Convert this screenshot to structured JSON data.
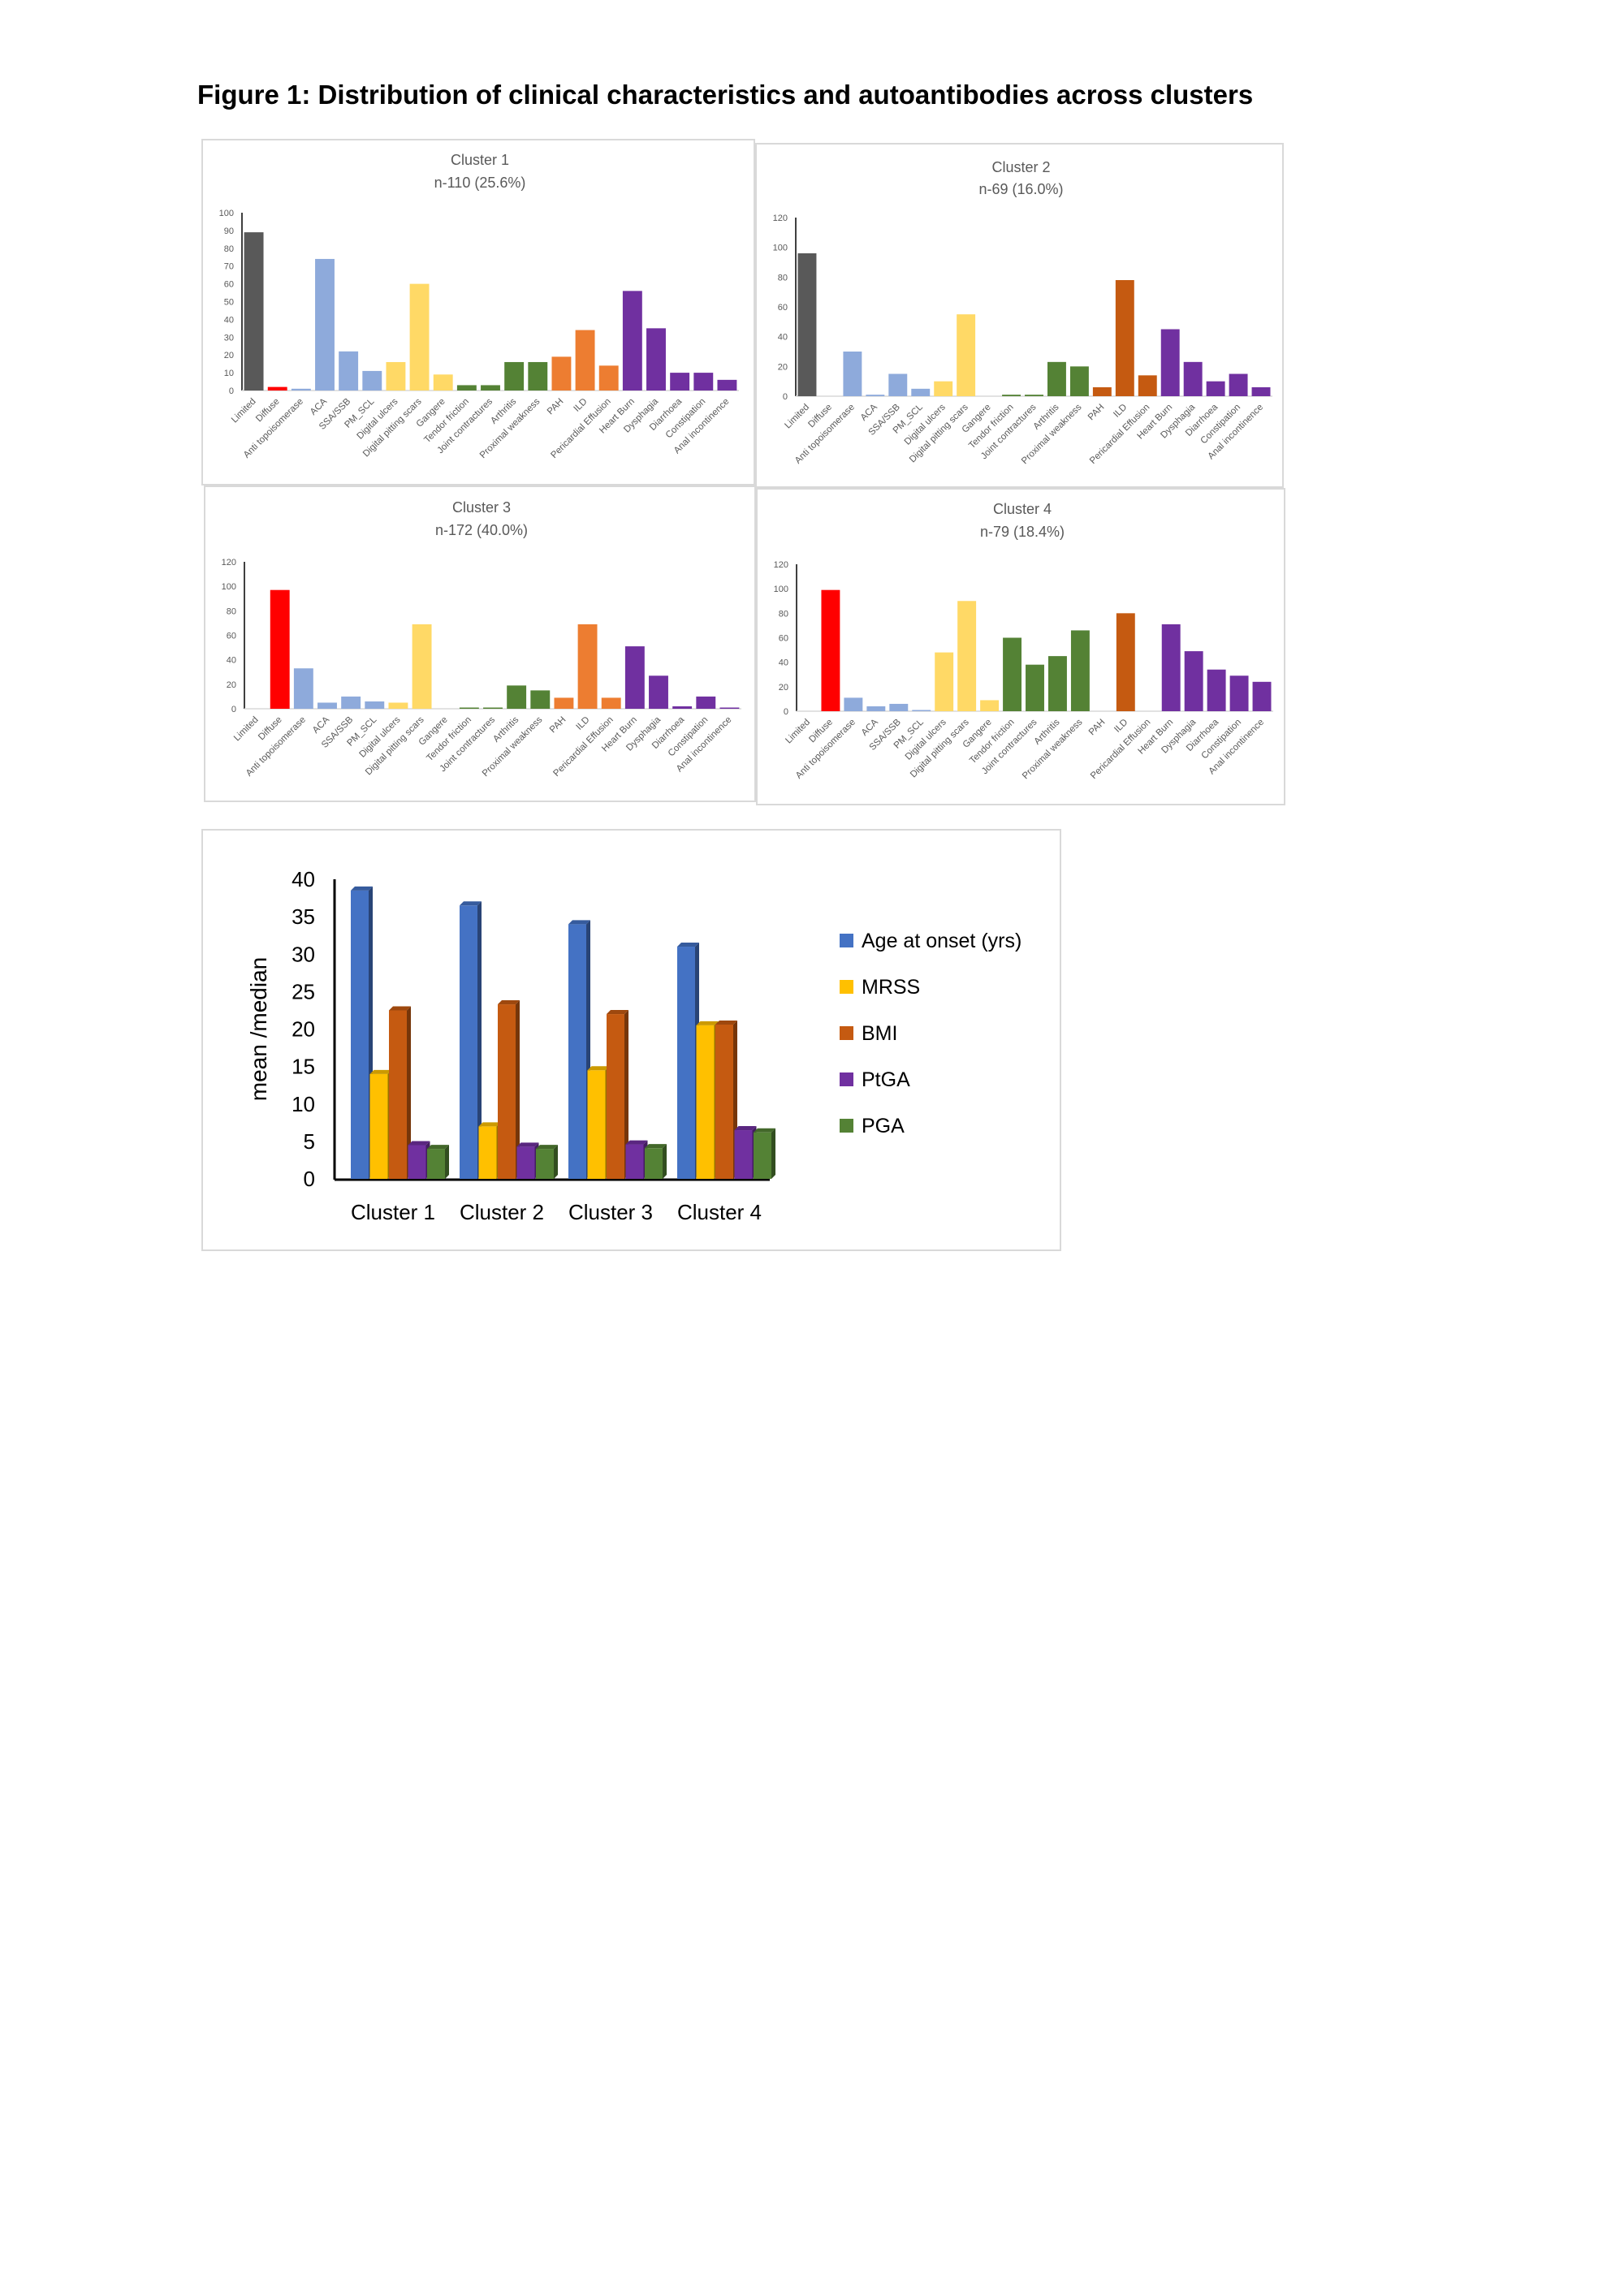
{
  "figure_title": "Figure 1: Distribution of clinical characteristics and autoantibodies across clusters",
  "colors": {
    "dark_gray": "#595959",
    "red": "#ff0000",
    "light_blue": "#8eaadb",
    "yellow": "#ffd966",
    "green": "#548235",
    "orange": "#ed7d31",
    "burnt_orange": "#c55a11",
    "purple": "#7030a0",
    "blue3d": "#4472c4",
    "gold3d": "#ffc000",
    "rust3d": "#c55a11",
    "purple3d": "#7030a0",
    "green3d": "#548235"
  },
  "chart_data": [
    {
      "id": "cluster1",
      "type": "bar",
      "title": "Cluster 1",
      "subtitle": "n-110 (25.6%)",
      "categories": [
        "Limited",
        "Diffuse",
        "Anti topoisomerase",
        "ACA",
        "SSA/SSB",
        "PM_SCL",
        "Digital ulcers",
        "Digital pitting scars",
        "Gangere",
        "Tendor friction",
        "Joint contractures",
        "Arthritis",
        "Proximal weakness",
        "PAH",
        "ILD",
        "Pericardial Effusion",
        "Heart Burn",
        "Dysphagia",
        "Diarrhoea",
        "Constipation",
        "Anal incontinence"
      ],
      "values": [
        89,
        2,
        1,
        74,
        22,
        11,
        16,
        60,
        9,
        3,
        3,
        16,
        16,
        19,
        34,
        14,
        56,
        35,
        10,
        10,
        6
      ],
      "bar_colors": [
        "dark_gray",
        "red",
        "light_blue",
        "light_blue",
        "light_blue",
        "light_blue",
        "yellow",
        "yellow",
        "yellow",
        "green",
        "green",
        "green",
        "green",
        "orange",
        "orange",
        "orange",
        "purple",
        "purple",
        "purple",
        "purple",
        "purple"
      ],
      "ylim": [
        0,
        100
      ],
      "yticks": [
        "0",
        "10",
        "20",
        "30",
        "40",
        "50",
        "60",
        "70",
        "80",
        "90",
        "100"
      ]
    },
    {
      "id": "cluster2",
      "type": "bar",
      "title": "Cluster 2",
      "subtitle": "n-69 (16.0%)",
      "categories": [
        "Limited",
        "Diffuse",
        "Anti topoisomerase",
        "ACA",
        "SSA/SSB",
        "PM_SCL",
        "Digital ulcers",
        "Digital pitting scars",
        "Gangere",
        "Tendor friction",
        "Joint contractures",
        "Arthritis",
        "Proximal weakness",
        "PAH",
        "ILD",
        "Pericardial Effusion",
        "Heart Burn",
        "Dysphagia",
        "Diarrhoea",
        "Constipation",
        "Anal incontinence"
      ],
      "values": [
        96,
        0,
        30,
        1,
        15,
        5,
        10,
        55,
        0,
        1,
        1,
        23,
        20,
        6,
        78,
        14,
        45,
        23,
        10,
        15,
        6
      ],
      "bar_colors": [
        "dark_gray",
        "red",
        "light_blue",
        "light_blue",
        "light_blue",
        "light_blue",
        "yellow",
        "yellow",
        "yellow",
        "green",
        "green",
        "green",
        "green",
        "burnt_orange",
        "burnt_orange",
        "burnt_orange",
        "purple",
        "purple",
        "purple",
        "purple",
        "purple"
      ],
      "ylim": [
        0,
        120
      ],
      "yticks": [
        "0",
        "20",
        "40",
        "60",
        "80",
        "100",
        "120"
      ]
    },
    {
      "id": "cluster3",
      "type": "bar",
      "title": "Cluster 3",
      "subtitle": "n-172 (40.0%)",
      "categories": [
        "Limited",
        "Diffuse",
        "Anti topoisomerase",
        "ACA",
        "SSA/SSB",
        "PM_SCL",
        "Digital ulcers",
        "Digital pitting scars",
        "Gangere",
        "Tendor friction",
        "Joint contractures",
        "Arthritis",
        "Proximal weakness",
        "PAH",
        "ILD",
        "Pericardial Effusion",
        "Heart Burn",
        "Dysphagia",
        "Diarrhoea",
        "Constipation",
        "Anal incontinence"
      ],
      "values": [
        0,
        97,
        33,
        5,
        10,
        6,
        5,
        69,
        0,
        1,
        1,
        19,
        15,
        9,
        69,
        9,
        51,
        27,
        2,
        10,
        1
      ],
      "bar_colors": [
        "dark_gray",
        "red",
        "light_blue",
        "light_blue",
        "light_blue",
        "light_blue",
        "yellow",
        "yellow",
        "yellow",
        "green",
        "green",
        "green",
        "green",
        "orange",
        "orange",
        "orange",
        "purple",
        "purple",
        "purple",
        "purple",
        "purple"
      ],
      "ylim": [
        0,
        120
      ],
      "yticks": [
        "0",
        "20",
        "40",
        "60",
        "80",
        "100",
        "120"
      ]
    },
    {
      "id": "cluster4",
      "type": "bar",
      "title": "Cluster 4",
      "subtitle": "n-79 (18.4%)",
      "categories": [
        "Limited",
        "Diffuse",
        "Anti topoisomerase",
        "ACA",
        "SSA/SSB",
        "PM_SCL",
        "Digital ulcers",
        "Digital pitting scars",
        "Gangere",
        "Tendor friction",
        "Joint contractures",
        "Arthritis",
        "Proximal weakness",
        "PAH",
        "ILD",
        "Pericardial Effusion",
        "Heart Burn",
        "Dysphagia",
        "Diarrhoea",
        "Constipation",
        "Anal incontinence"
      ],
      "values": [
        0,
        99,
        11,
        4,
        6,
        1,
        48,
        90,
        9,
        60,
        38,
        45,
        66,
        0,
        80,
        0,
        71,
        49,
        34,
        29,
        24
      ],
      "bar_colors": [
        "dark_gray",
        "red",
        "light_blue",
        "light_blue",
        "light_blue",
        "light_blue",
        "yellow",
        "yellow",
        "yellow",
        "green",
        "green",
        "green",
        "green",
        "burnt_orange",
        "burnt_orange",
        "burnt_orange",
        "purple",
        "purple",
        "purple",
        "purple",
        "purple"
      ],
      "ylim": [
        0,
        120
      ],
      "yticks": [
        "0",
        "20",
        "40",
        "60",
        "80",
        "100",
        "120"
      ]
    },
    {
      "id": "summary",
      "type": "bar",
      "title": "",
      "ylabel": "mean /median",
      "categories": [
        "Cluster 1",
        "Cluster 2",
        "Cluster 3",
        "Cluster 4"
      ],
      "ylim": [
        0,
        40
      ],
      "yticks": [
        "0",
        "5",
        "10",
        "15",
        "20",
        "25",
        "30",
        "35",
        "40"
      ],
      "legend_position": "right",
      "series": [
        {
          "name": "Age at onset (yrs)",
          "color": "blue3d",
          "values": [
            38.5,
            36.5,
            34,
            31
          ]
        },
        {
          "name": "MRSS",
          "color": "gold3d",
          "values": [
            14,
            7,
            14.5,
            20.5
          ]
        },
        {
          "name": "BMI",
          "color": "rust3d",
          "values": [
            22.5,
            23.3,
            22,
            20.6
          ]
        },
        {
          "name": "PtGA",
          "color": "purple3d",
          "values": [
            4.5,
            4.3,
            4.6,
            6.5
          ]
        },
        {
          "name": "PGA",
          "color": "green3d",
          "values": [
            4,
            4,
            4.1,
            6.2
          ]
        }
      ]
    }
  ]
}
